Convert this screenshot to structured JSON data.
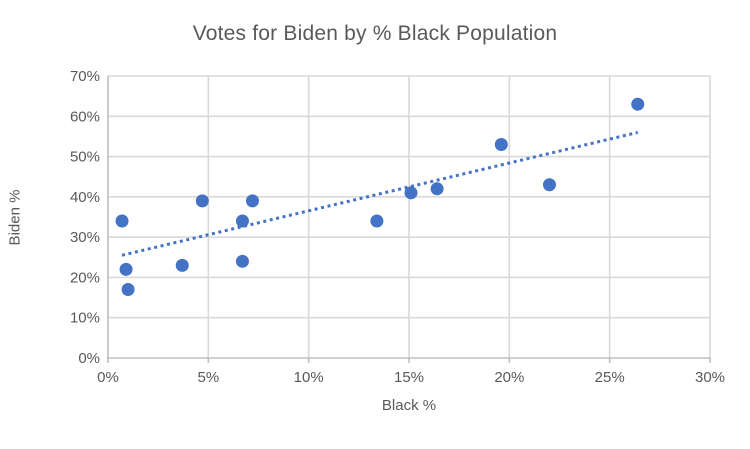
{
  "chart": {
    "title": "Votes for Biden by % Black Population",
    "x_axis_title": "Black %",
    "y_axis_title": "Biden %"
  },
  "chart_data": {
    "type": "scatter",
    "title": "Votes for Biden by % Black Population",
    "xlabel": "Black %",
    "ylabel": "Biden %",
    "xlim": [
      0,
      30
    ],
    "ylim": [
      0,
      70
    ],
    "grid": true,
    "legend": null,
    "x_tick_values": [
      0,
      5,
      10,
      15,
      20,
      25,
      30
    ],
    "x_tick_labels": [
      "0%",
      "5%",
      "10%",
      "15%",
      "20%",
      "25%",
      "30%"
    ],
    "y_tick_values": [
      0,
      10,
      20,
      30,
      40,
      50,
      60,
      70
    ],
    "y_tick_labels": [
      "0%",
      "10%",
      "20%",
      "30%",
      "40%",
      "50%",
      "60%",
      "70%"
    ],
    "points": [
      {
        "x": 0.7,
        "y": 34
      },
      {
        "x": 0.9,
        "y": 22
      },
      {
        "x": 1.0,
        "y": 17
      },
      {
        "x": 3.7,
        "y": 23
      },
      {
        "x": 4.7,
        "y": 39
      },
      {
        "x": 6.7,
        "y": 34
      },
      {
        "x": 6.7,
        "y": 24
      },
      {
        "x": 7.2,
        "y": 39
      },
      {
        "x": 13.4,
        "y": 34
      },
      {
        "x": 15.1,
        "y": 41
      },
      {
        "x": 16.4,
        "y": 42
      },
      {
        "x": 19.6,
        "y": 53
      },
      {
        "x": 22.0,
        "y": 43
      },
      {
        "x": 26.4,
        "y": 63
      }
    ],
    "trendline": {
      "style": "dotted",
      "x1": 0.7,
      "y1": 25.5,
      "x2": 26.4,
      "y2": 56.0
    },
    "colors": {
      "marker": "#4472C4",
      "trendline": "#4472C4",
      "gridline": "#D9D9D9",
      "axis_line": "#BFBFBF",
      "text": "#595959",
      "background": "#FFFFFF"
    }
  }
}
